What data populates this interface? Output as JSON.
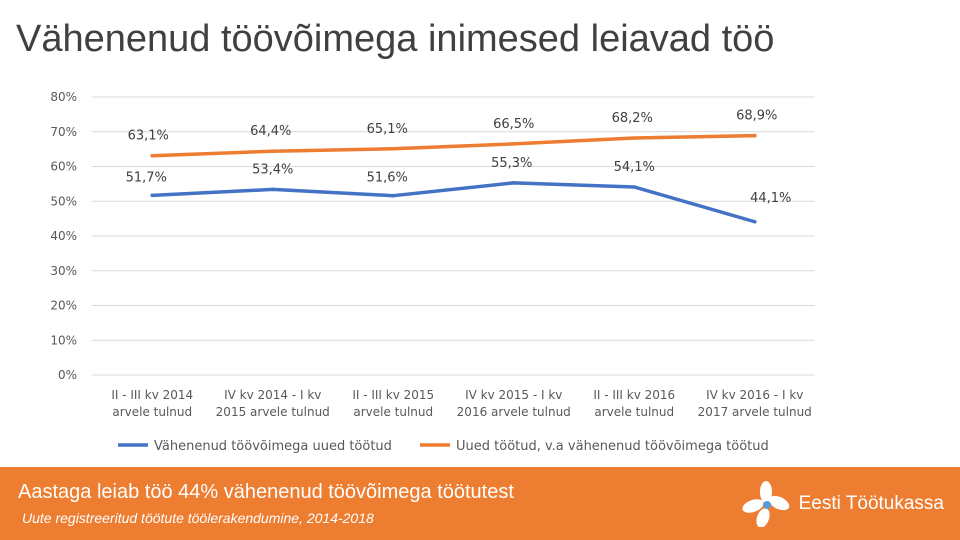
{
  "slide": {
    "title": "Vähenenud töövõimega inimesed leiavad töö"
  },
  "footer": {
    "headline": "Aastaga leiab töö 44% vähenenud töövõimega töötutest",
    "subtitle": "Uute registreeritud töötute töölerakendumine, 2014-2018",
    "brand": "Eesti Töötukassa",
    "brand_logo_icon": "flower-logo-icon"
  },
  "colors": {
    "blue": "#4472c4",
    "orange": "#ed7d31",
    "grid": "#d9d9d9"
  },
  "chart_data": {
    "type": "line",
    "ylim": [
      0,
      80
    ],
    "yticks": [
      "0%",
      "10%",
      "20%",
      "30%",
      "40%",
      "50%",
      "60%",
      "70%",
      "80%"
    ],
    "categories": [
      [
        "II - III kv 2014",
        "arvele tulnud"
      ],
      [
        "IV kv 2014 - I kv",
        "2015 arvele tulnud"
      ],
      [
        "II - III kv 2015",
        "arvele tulnud"
      ],
      [
        "IV kv 2015 - I kv",
        "2016 arvele tulnud"
      ],
      [
        "II - III kv 2016",
        "arvele tulnud"
      ],
      [
        "IV kv 2016 - I kv",
        "2017 arvele tulnud"
      ]
    ],
    "series": [
      {
        "name": "Vähenenud töövõimega uued töötud",
        "color": "#4472c4",
        "values": [
          51.7,
          53.4,
          51.6,
          55.3,
          54.1,
          44.1
        ],
        "labels": [
          "51,7%",
          "53,4%",
          "51,6%",
          "55,3%",
          "54,1%",
          "44,1%"
        ]
      },
      {
        "name": "Uued töötud, v.a vähenenud töövõimega töötud",
        "color": "#ed7d31",
        "values": [
          63.1,
          64.4,
          65.1,
          66.5,
          68.2,
          68.9
        ],
        "labels": [
          "63,1%",
          "64,4%",
          "65,1%",
          "66,5%",
          "68,2%",
          "68,9%"
        ]
      }
    ],
    "grid": true,
    "legend": "bottom"
  }
}
